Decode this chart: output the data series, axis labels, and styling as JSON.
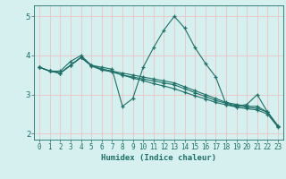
{
  "xlabel": "Humidex (Indice chaleur)",
  "bg_color": "#d5f0ee",
  "grid_color": "#e8c8c8",
  "line_color": "#1e7068",
  "xlim_min": -0.5,
  "xlim_max": 23.5,
  "ylim_min": 1.85,
  "ylim_max": 5.28,
  "yticks": [
    2,
    3,
    4,
    5
  ],
  "xticks": [
    0,
    1,
    2,
    3,
    4,
    5,
    6,
    7,
    8,
    9,
    10,
    11,
    12,
    13,
    14,
    15,
    16,
    17,
    18,
    19,
    20,
    21,
    22,
    23
  ],
  "series1": [
    3.7,
    3.6,
    3.6,
    3.85,
    4.0,
    3.75,
    3.7,
    3.65,
    2.7,
    2.9,
    3.7,
    4.2,
    4.65,
    5.0,
    4.7,
    4.2,
    3.8,
    3.45,
    2.75,
    2.7,
    2.75,
    3.0,
    2.55,
    2.2
  ],
  "series2": [
    3.7,
    3.6,
    3.55,
    3.75,
    3.95,
    3.75,
    3.65,
    3.6,
    3.55,
    3.5,
    3.45,
    3.4,
    3.35,
    3.3,
    3.2,
    3.1,
    3.0,
    2.9,
    2.8,
    2.75,
    2.7,
    2.7,
    2.55,
    2.2
  ],
  "series3": [
    3.7,
    3.6,
    3.55,
    3.75,
    3.95,
    3.75,
    3.65,
    3.6,
    3.5,
    3.45,
    3.4,
    3.35,
    3.3,
    3.25,
    3.15,
    3.05,
    2.95,
    2.85,
    2.78,
    2.72,
    2.68,
    2.65,
    2.55,
    2.2
  ],
  "series4": [
    3.7,
    3.6,
    3.55,
    3.75,
    3.95,
    3.73,
    3.63,
    3.58,
    3.5,
    3.42,
    3.36,
    3.28,
    3.22,
    3.15,
    3.06,
    2.97,
    2.89,
    2.8,
    2.74,
    2.68,
    2.64,
    2.61,
    2.5,
    2.17
  ]
}
